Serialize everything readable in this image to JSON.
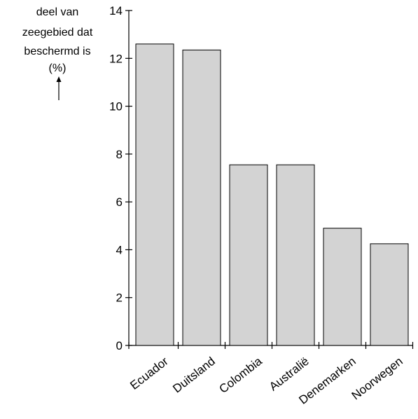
{
  "chart_data": {
    "type": "bar",
    "ylabel_lines": [
      "deel van",
      "zeegebied dat",
      "beschermd is",
      "(%)"
    ],
    "xlabel": "",
    "categories": [
      "Ecuador",
      "Duitsland",
      "Colombia",
      "Australië",
      "Denemarken",
      "Noorwegen"
    ],
    "values": [
      12.6,
      12.35,
      7.55,
      7.55,
      4.9,
      4.25
    ],
    "ylim": [
      0,
      14
    ],
    "yticks": [
      0,
      2,
      4,
      6,
      8,
      10,
      12,
      14
    ],
    "grid": false,
    "colors": {
      "bar_fill": "#d3d3d3",
      "bar_stroke": "#000000",
      "axis": "#000000"
    }
  }
}
